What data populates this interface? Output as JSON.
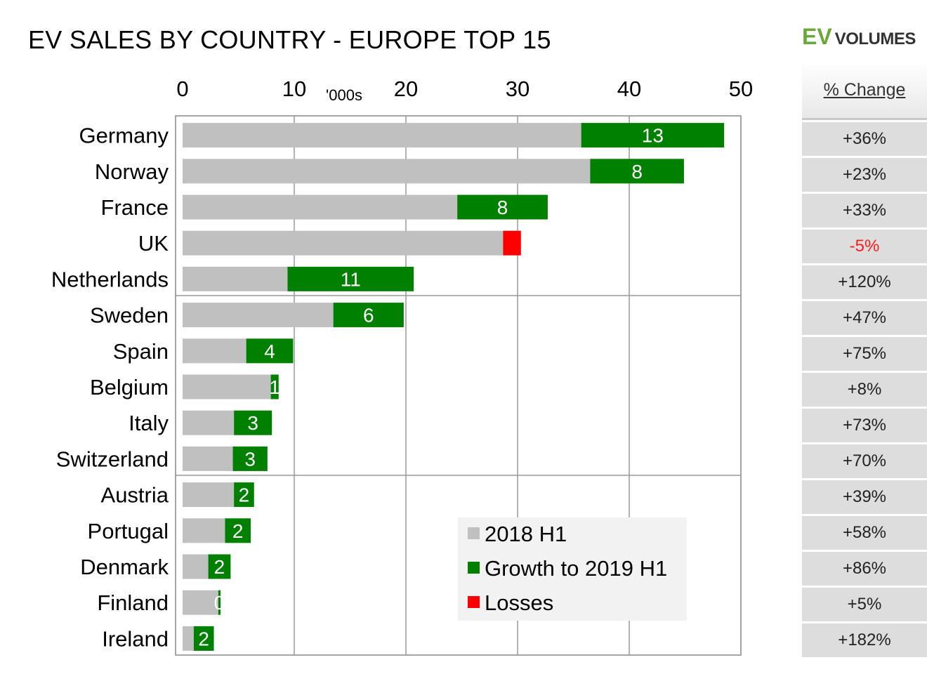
{
  "title": "EV SALES BY COUNTRY - EUROPE TOP 15",
  "logo": {
    "ev": "EV",
    "volumes": "VOLUMES"
  },
  "colors": {
    "base": "#c0c0c0",
    "growth": "#008000",
    "loss": "#ff0000",
    "logo_green": "#6aa83b"
  },
  "pct_change": {
    "header": "% Change",
    "values": [
      "+36%",
      "+23%",
      "+33%",
      "-5%",
      "+120%",
      "+47%",
      "+75%",
      "+8%",
      "+73%",
      "+70%",
      "+39%",
      "+58%",
      "+86%",
      "+5%",
      "+182%"
    ]
  },
  "chart_data": {
    "type": "bar",
    "orientation": "horizontal",
    "stacked": true,
    "unit_label": "'000s",
    "xlim": [
      0,
      50
    ],
    "ticks": [
      0,
      10,
      20,
      30,
      40,
      50
    ],
    "categories": [
      "Germany",
      "Norway",
      "France",
      "UK",
      "Netherlands",
      "Sweden",
      "Spain",
      "Belgium",
      "Italy",
      "Switzerland",
      "Austria",
      "Portugal",
      "Denmark",
      "Finland",
      "Ireland"
    ],
    "series": [
      {
        "name": "2018 H1",
        "values": [
          35.7,
          36.5,
          24.6,
          28.7,
          9.4,
          13.5,
          5.7,
          7.9,
          4.6,
          4.5,
          4.6,
          3.8,
          2.3,
          3.2,
          1.0
        ]
      },
      {
        "name": "Growth to 2019 H1",
        "values": [
          12.8,
          8.4,
          8.1,
          0,
          11.3,
          6.3,
          4.2,
          0.7,
          3.4,
          3.1,
          1.8,
          2.3,
          2.0,
          0.2,
          1.8
        ]
      },
      {
        "name": "Losses",
        "values": [
          0,
          0,
          0,
          1.6,
          0,
          0,
          0,
          0,
          0,
          0,
          0,
          0,
          0,
          0,
          0
        ]
      }
    ],
    "data_labels": [
      "13",
      "8",
      "8",
      "",
      "11",
      "6",
      "4",
      "1",
      "3",
      "3",
      "2",
      "2",
      "2",
      "0",
      "2"
    ],
    "legend": {
      "position": "bottom-right",
      "entries": [
        "2018 H1",
        "Growth to 2019 H1",
        "Losses"
      ]
    },
    "grid": true
  }
}
